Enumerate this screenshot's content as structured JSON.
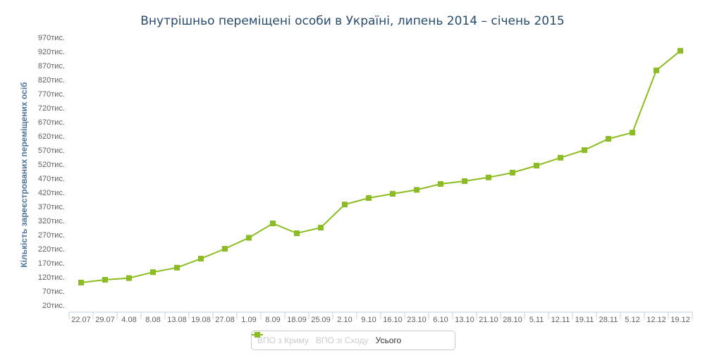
{
  "chart_data": {
    "type": "line",
    "title": "Внутрішньо переміщені особи в Україні, липень 2014 – січень 2015",
    "ylabel": "Кількість зареєстрованих переміщених осіб",
    "xlabel": "",
    "categories": [
      "22.07",
      "29.07",
      "4.08",
      "8.08",
      "13.08",
      "19.08",
      "27.08",
      "1.09",
      "8.09",
      "18.09",
      "25.09",
      "2.10",
      "9.10",
      "16.10",
      "23.10",
      "6.10",
      "13.10",
      "21.10",
      "28.10",
      "5.11",
      "12.11",
      "19.11",
      "28.11",
      "5.12",
      "12.12",
      "19.12"
    ],
    "y_ticks": [
      "970тис.",
      "920тис.",
      "870тис.",
      "820тис.",
      "770тис.",
      "720тис.",
      "670тис.",
      "620тис.",
      "570тис.",
      "520тис.",
      "470тис.",
      "420тис.",
      "370тис.",
      "320тис.",
      "270тис.",
      "220тис.",
      "170тис.",
      "120тис.",
      "70тис.",
      "20тис."
    ],
    "ylim": [
      20000,
      970000
    ],
    "series": [
      {
        "name": "Усього",
        "color": "#8bbc21",
        "values": [
          100000,
          110000,
          116000,
          137000,
          153000,
          185000,
          220000,
          259000,
          310000,
          275000,
          295000,
          377000,
          400000,
          415000,
          429000,
          450000,
          460000,
          473000,
          490000,
          515000,
          543000,
          570000,
          610000,
          632000,
          853000,
          922000
        ]
      }
    ],
    "legend": [
      {
        "name": "ВПО з Криму",
        "color": "#cccccc",
        "state": "hidden"
      },
      {
        "name": "ВПО зі Сходу",
        "color": "#cccccc",
        "state": "hidden"
      },
      {
        "name": "Усього",
        "color": "#8bbc21",
        "state": "visible"
      }
    ],
    "legend_position": "bottom-center",
    "grid": false
  }
}
